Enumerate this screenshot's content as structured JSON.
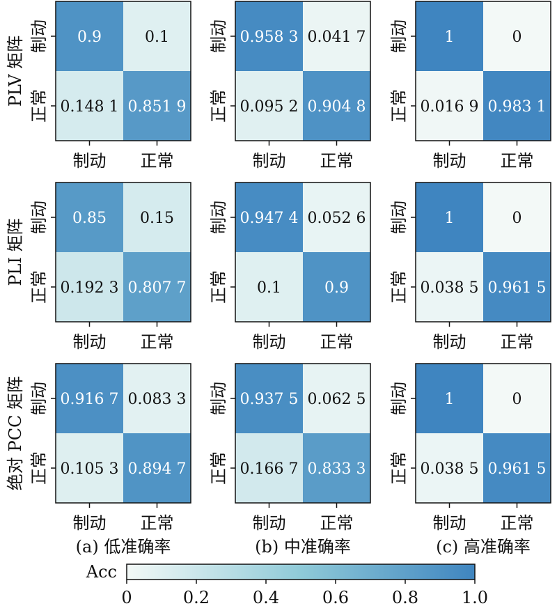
{
  "chart_data": [
    {
      "type": "heatmap",
      "row_label": "PLV 矩阵",
      "column_label": "",
      "x_categories": [
        "制动",
        "正常"
      ],
      "y_categories": [
        "制动",
        "正常"
      ],
      "values": [
        [
          0.9,
          0.1
        ],
        [
          0.1481,
          0.8519
        ]
      ],
      "labels": [
        [
          "0.9",
          "0.1"
        ],
        [
          "0.148 1",
          "0.851 9"
        ]
      ]
    },
    {
      "type": "heatmap",
      "row_label": "PLV 矩阵",
      "column_label": "",
      "x_categories": [
        "制动",
        "正常"
      ],
      "y_categories": [
        "制动",
        "正常"
      ],
      "values": [
        [
          0.9583,
          0.0417
        ],
        [
          0.0952,
          0.9048
        ]
      ],
      "labels": [
        [
          "0.958 3",
          "0.041 7"
        ],
        [
          "0.095 2",
          "0.904 8"
        ]
      ]
    },
    {
      "type": "heatmap",
      "row_label": "PLV 矩阵",
      "column_label": "",
      "x_categories": [
        "制动",
        "正常"
      ],
      "y_categories": [
        "制动",
        "正常"
      ],
      "values": [
        [
          1,
          0
        ],
        [
          0.0169,
          0.9831
        ]
      ],
      "labels": [
        [
          "1",
          "0"
        ],
        [
          "0.016 9",
          "0.983 1"
        ]
      ]
    },
    {
      "type": "heatmap",
      "row_label": "PLI 矩阵",
      "column_label": "",
      "x_categories": [
        "制动",
        "正常"
      ],
      "y_categories": [
        "制动",
        "正常"
      ],
      "values": [
        [
          0.85,
          0.15
        ],
        [
          0.1923,
          0.8077
        ]
      ],
      "labels": [
        [
          "0.85",
          "0.15"
        ],
        [
          "0.192 3",
          "0.807 7"
        ]
      ]
    },
    {
      "type": "heatmap",
      "row_label": "PLI 矩阵",
      "column_label": "",
      "x_categories": [
        "制动",
        "正常"
      ],
      "y_categories": [
        "制动",
        "正常"
      ],
      "values": [
        [
          0.9474,
          0.0526
        ],
        [
          0.1,
          0.9
        ]
      ],
      "labels": [
        [
          "0.947 4",
          "0.052 6"
        ],
        [
          "0.1",
          "0.9"
        ]
      ]
    },
    {
      "type": "heatmap",
      "row_label": "PLI 矩阵",
      "column_label": "",
      "x_categories": [
        "制动",
        "正常"
      ],
      "y_categories": [
        "制动",
        "正常"
      ],
      "values": [
        [
          1,
          0
        ],
        [
          0.0385,
          0.9615
        ]
      ],
      "labels": [
        [
          "1",
          "0"
        ],
        [
          "0.038 5",
          "0.961 5"
        ]
      ]
    },
    {
      "type": "heatmap",
      "row_label": "绝对 PCC 矩阵",
      "column_label": "(a) 低准确率",
      "x_categories": [
        "制动",
        "正常"
      ],
      "y_categories": [
        "制动",
        "正常"
      ],
      "values": [
        [
          0.9167,
          0.0833
        ],
        [
          0.1053,
          0.8947
        ]
      ],
      "labels": [
        [
          "0.916 7",
          "0.083 3"
        ],
        [
          "0.105 3",
          "0.894 7"
        ]
      ]
    },
    {
      "type": "heatmap",
      "row_label": "绝对 PCC 矩阵",
      "column_label": "(b) 中准确率",
      "x_categories": [
        "制动",
        "正常"
      ],
      "y_categories": [
        "制动",
        "正常"
      ],
      "values": [
        [
          0.9375,
          0.0625
        ],
        [
          0.1667,
          0.8333
        ]
      ],
      "labels": [
        [
          "0.937 5",
          "0.062 5"
        ],
        [
          "0.166 7",
          "0.833 3"
        ]
      ]
    },
    {
      "type": "heatmap",
      "row_label": "绝对 PCC 矩阵",
      "column_label": "(c) 高准确率",
      "x_categories": [
        "制动",
        "正常"
      ],
      "y_categories": [
        "制动",
        "正常"
      ],
      "values": [
        [
          1,
          0
        ],
        [
          0.0385,
          0.9615
        ]
      ],
      "labels": [
        [
          "1",
          "0"
        ],
        [
          "0.038 5",
          "0.961 5"
        ]
      ]
    }
  ],
  "row_labels": [
    "PLV 矩阵",
    "PLI 矩阵",
    "绝对 PCC 矩阵"
  ],
  "column_labels": [
    "(a) 低准确率",
    "(b) 中准确率",
    "(c) 高准确率"
  ],
  "colorbar": {
    "label": "Acc",
    "range": [
      0,
      1
    ],
    "ticks": [
      0,
      0.2,
      0.4,
      0.6,
      0.8,
      1.0
    ],
    "tick_labels": [
      "0",
      "0.2",
      "0.4",
      "0.6",
      "0.8",
      "1.0"
    ],
    "color_low": "#f3f9f7",
    "color_mid": "#8fcad8",
    "color_high": "#3f85c0"
  }
}
